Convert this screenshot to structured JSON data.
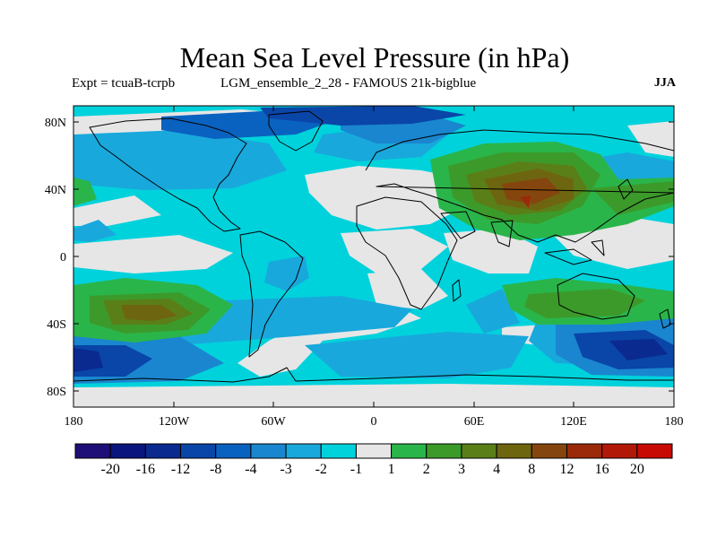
{
  "title": "Mean Sea Level Pressure (in hPa)",
  "subtitle": {
    "expt": "Expt = tcuaB-tcrpb",
    "run": "LGM_ensemble_2_28 - FAMOUS 21k-bigblue",
    "season": "JJA"
  },
  "map": {
    "projection": "cylindrical-equidistant",
    "lat_range": [
      -90,
      90
    ],
    "lon_range": [
      -180,
      180
    ],
    "y_ticks": [
      "80N",
      "40N",
      "0",
      "40S",
      "80S"
    ],
    "x_ticks": [
      "180",
      "120W",
      "60W",
      "0",
      "60E",
      "120E",
      "180"
    ]
  },
  "colorbar": {
    "colors": [
      "#1e0f78",
      "#0a157d",
      "#0a2a8f",
      "#0a45a8",
      "#0a62c0",
      "#1a86cf",
      "#19a8dc",
      "#00d2dc",
      "#e6e6e6",
      "#2ab54a",
      "#3c9a2a",
      "#5a7f18",
      "#6e6510",
      "#84460e",
      "#9a2a0a",
      "#b21808",
      "#c80a05"
    ],
    "labels": [
      "-20",
      "-16",
      "-12",
      "-8",
      "-4",
      "-3",
      "-2",
      "-1",
      "1",
      "2",
      "3",
      "4",
      "8",
      "12",
      "16",
      "20"
    ]
  }
}
